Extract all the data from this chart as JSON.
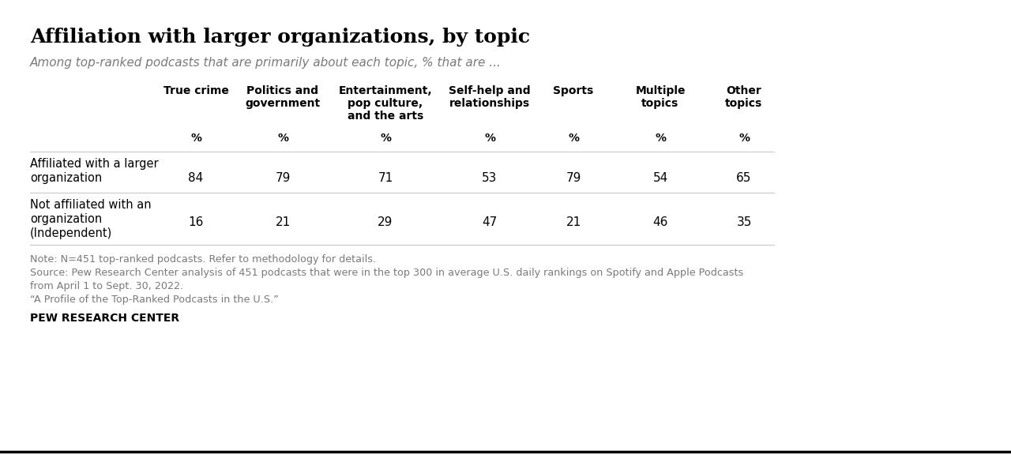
{
  "title": "Affiliation with larger organizations, by topic",
  "subtitle": "Among top-ranked podcasts that are primarily about each topic, % that are ...",
  "columns": [
    "True crime",
    "Politics and\ngovernment",
    "Entertainment,\npop culture,\nand the arts",
    "Self-help and\nrelationships",
    "Sports",
    "Multiple\ntopics",
    "Other\ntopics"
  ],
  "row1_label": [
    "Affiliated with a larger",
    "organization"
  ],
  "row2_label": [
    "Not affiliated with an",
    "organization",
    "(Independent)"
  ],
  "row1_values": [
    84,
    79,
    71,
    53,
    79,
    54,
    65
  ],
  "row2_values": [
    16,
    21,
    29,
    47,
    21,
    46,
    35
  ],
  "note_line1": "Note: N=451 top-ranked podcasts. Refer to methodology for details.",
  "note_line2": "Source: Pew Research Center analysis of 451 podcasts that were in the top 300 in average U.S. daily rankings on Spotify and Apple Podcasts",
  "note_line3": "from April 1 to Sept. 30, 2022.",
  "note_line4": "“A Profile of the Top-Ranked Podcasts in the U.S.”",
  "footer": "PEW RESEARCH CENTER",
  "bg_color": "#FFFFFF",
  "text_color": "#000000",
  "subtitle_color": "#7a7a7a",
  "note_color": "#7a7a7a",
  "line_color": "#cccccc",
  "border_color": "#000000"
}
